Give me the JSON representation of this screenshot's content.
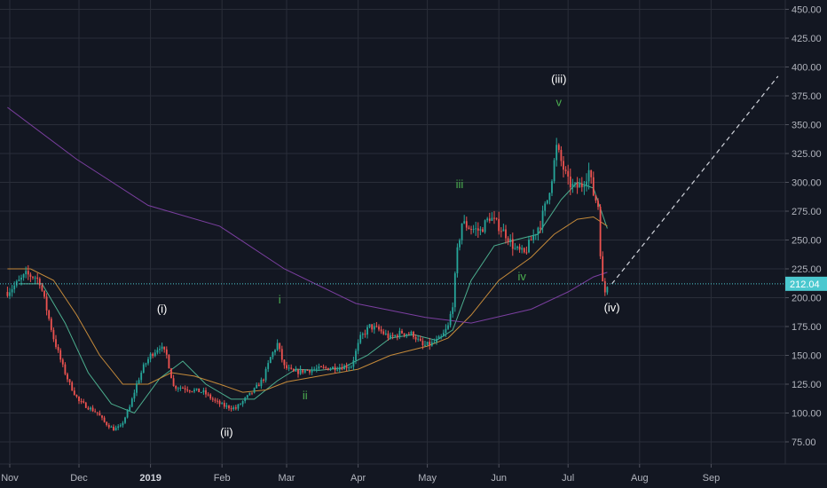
{
  "chart_data": {
    "type": "candlestick",
    "title": "",
    "xlabel": "",
    "ylabel": "",
    "ylim": [
      60,
      460
    ],
    "y_ticks": [
      75,
      100,
      125,
      150,
      175,
      200,
      225,
      250,
      275,
      300,
      325,
      350,
      375,
      400,
      425,
      450
    ],
    "y_tick_labels": [
      "75.00",
      "100.00",
      "125.00",
      "150.00",
      "175.00",
      "200.00",
      "225.00",
      "250.00",
      "275.00",
      "300.00",
      "325.00",
      "350.00",
      "375.00",
      "400.00",
      "425.00",
      "450.00"
    ],
    "x_tick_labels": [
      "Nov",
      "Dec",
      "2019",
      "Feb",
      "Mar",
      "Apr",
      "May",
      "Jun",
      "Jul",
      "Aug",
      "Sep"
    ],
    "x_tick_dates": [
      "2018-11-01",
      "2018-12-01",
      "2019-01-01",
      "2019-02-01",
      "2019-03-01",
      "2019-04-01",
      "2019-05-01",
      "2019-06-01",
      "2019-07-01",
      "2019-08-01",
      "2019-09-01"
    ],
    "grid": true,
    "last_price": 212.04,
    "last_price_label": "212.04",
    "price_path": [
      [
        "2018-10-31",
        205
      ],
      [
        "2018-11-04",
        212
      ],
      [
        "2018-11-08",
        220
      ],
      [
        "2018-11-12",
        218
      ],
      [
        "2018-11-14",
        214
      ],
      [
        "2018-11-17",
        190
      ],
      [
        "2018-11-20",
        165
      ],
      [
        "2018-11-24",
        140
      ],
      [
        "2018-11-27",
        125
      ],
      [
        "2018-12-01",
        110
      ],
      [
        "2018-12-05",
        105
      ],
      [
        "2018-12-09",
        100
      ],
      [
        "2018-12-12",
        92
      ],
      [
        "2018-12-16",
        86
      ],
      [
        "2018-12-19",
        88
      ],
      [
        "2018-12-23",
        105
      ],
      [
        "2018-12-26",
        125
      ],
      [
        "2018-12-29",
        140
      ],
      [
        "2019-01-01",
        150
      ],
      [
        "2019-01-05",
        158
      ],
      [
        "2019-01-08",
        150
      ],
      [
        "2019-01-11",
        123
      ],
      [
        "2019-01-15",
        122
      ],
      [
        "2019-01-19",
        120
      ],
      [
        "2019-01-24",
        118
      ],
      [
        "2019-01-29",
        110
      ],
      [
        "2019-02-02",
        106
      ],
      [
        "2019-02-07",
        104
      ],
      [
        "2019-02-11",
        112
      ],
      [
        "2019-02-15",
        120
      ],
      [
        "2019-02-19",
        130
      ],
      [
        "2019-02-22",
        148
      ],
      [
        "2019-02-25",
        160
      ],
      [
        "2019-02-28",
        140
      ],
      [
        "2019-03-04",
        135
      ],
      [
        "2019-03-09",
        137
      ],
      [
        "2019-03-14",
        138
      ],
      [
        "2019-03-19",
        139
      ],
      [
        "2019-03-24",
        140
      ],
      [
        "2019-03-29",
        141
      ],
      [
        "2019-04-02",
        165
      ],
      [
        "2019-04-06",
        175
      ],
      [
        "2019-04-10",
        172
      ],
      [
        "2019-04-15",
        165
      ],
      [
        "2019-04-20",
        170
      ],
      [
        "2019-04-25",
        168
      ],
      [
        "2019-04-29",
        158
      ],
      [
        "2019-05-03",
        160
      ],
      [
        "2019-05-07",
        165
      ],
      [
        "2019-05-10",
        175
      ],
      [
        "2019-05-12",
        195
      ],
      [
        "2019-05-14",
        240
      ],
      [
        "2019-05-16",
        265
      ],
      [
        "2019-05-20",
        260
      ],
      [
        "2019-05-24",
        258
      ],
      [
        "2019-05-28",
        270
      ],
      [
        "2019-06-01",
        262
      ],
      [
        "2019-06-04",
        255
      ],
      [
        "2019-06-08",
        242
      ],
      [
        "2019-06-12",
        238
      ],
      [
        "2019-06-15",
        250
      ],
      [
        "2019-06-19",
        265
      ],
      [
        "2019-06-22",
        285
      ],
      [
        "2019-06-24",
        305
      ],
      [
        "2019-06-26",
        330
      ],
      [
        "2019-06-28",
        318
      ],
      [
        "2019-07-01",
        300
      ],
      [
        "2019-07-04",
        295
      ],
      [
        "2019-07-07",
        298
      ],
      [
        "2019-07-10",
        310
      ],
      [
        "2019-07-12",
        290
      ],
      [
        "2019-07-14",
        280
      ],
      [
        "2019-07-15",
        240
      ],
      [
        "2019-07-16",
        212
      ],
      [
        "2019-07-17",
        205
      ],
      [
        "2019-07-18",
        212
      ]
    ],
    "moving_averages": [
      {
        "name": "",
        "color": "#4caf8f",
        "values": [
          [
            "2018-11-05",
            212
          ],
          [
            "2018-11-15",
            212
          ],
          [
            "2018-11-25",
            178
          ],
          [
            "2018-12-05",
            135
          ],
          [
            "2018-12-15",
            108
          ],
          [
            "2018-12-25",
            100
          ],
          [
            "2019-01-05",
            130
          ],
          [
            "2019-01-15",
            145
          ],
          [
            "2019-01-25",
            125
          ],
          [
            "2019-02-05",
            112
          ],
          [
            "2019-02-15",
            112
          ],
          [
            "2019-02-25",
            128
          ],
          [
            "2019-03-05",
            138
          ],
          [
            "2019-03-15",
            137
          ],
          [
            "2019-03-25",
            139
          ],
          [
            "2019-04-05",
            150
          ],
          [
            "2019-04-15",
            165
          ],
          [
            "2019-04-25",
            168
          ],
          [
            "2019-05-05",
            163
          ],
          [
            "2019-05-12",
            172
          ],
          [
            "2019-05-20",
            215
          ],
          [
            "2019-05-30",
            245
          ],
          [
            "2019-06-08",
            250
          ],
          [
            "2019-06-18",
            255
          ],
          [
            "2019-06-28",
            285
          ],
          [
            "2019-07-05",
            300
          ],
          [
            "2019-07-12",
            295
          ],
          [
            "2019-07-18",
            260
          ]
        ]
      },
      {
        "name": "",
        "color": "#c58a3a",
        "values": [
          [
            "2018-10-31",
            225
          ],
          [
            "2018-11-10",
            225
          ],
          [
            "2018-11-20",
            215
          ],
          [
            "2018-11-30",
            185
          ],
          [
            "2018-12-10",
            150
          ],
          [
            "2018-12-20",
            125
          ],
          [
            "2018-12-31",
            125
          ],
          [
            "2019-01-10",
            135
          ],
          [
            "2019-01-20",
            132
          ],
          [
            "2019-01-31",
            125
          ],
          [
            "2019-02-10",
            118
          ],
          [
            "2019-02-20",
            120
          ],
          [
            "2019-03-01",
            127
          ],
          [
            "2019-03-15",
            132
          ],
          [
            "2019-04-01",
            138
          ],
          [
            "2019-04-15",
            150
          ],
          [
            "2019-05-01",
            158
          ],
          [
            "2019-05-10",
            165
          ],
          [
            "2019-05-20",
            185
          ],
          [
            "2019-06-01",
            215
          ],
          [
            "2019-06-15",
            235
          ],
          [
            "2019-06-25",
            255
          ],
          [
            "2019-07-05",
            268
          ],
          [
            "2019-07-12",
            270
          ],
          [
            "2019-07-18",
            262
          ]
        ]
      },
      {
        "name": "",
        "color": "#7b3fa0",
        "values": [
          [
            "2018-10-31",
            365
          ],
          [
            "2018-11-30",
            320
          ],
          [
            "2018-12-31",
            280
          ],
          [
            "2019-01-31",
            262
          ],
          [
            "2019-02-28",
            225
          ],
          [
            "2019-03-31",
            195
          ],
          [
            "2019-04-30",
            183
          ],
          [
            "2019-05-20",
            178
          ],
          [
            "2019-06-15",
            190
          ],
          [
            "2019-07-01",
            205
          ],
          [
            "2019-07-12",
            218
          ],
          [
            "2019-07-18",
            222
          ]
        ]
      }
    ],
    "projection": {
      "from": [
        "2019-07-20",
        212
      ],
      "to": [
        "2019-09-30",
        392
      ]
    },
    "annotations": [
      {
        "text": "(i)",
        "date": "2019-01-06",
        "price": 187,
        "color": "white"
      },
      {
        "text": "(ii)",
        "date": "2019-02-03",
        "price": 80,
        "color": "white"
      },
      {
        "text": "i",
        "date": "2019-02-26",
        "price": 195,
        "color": "green"
      },
      {
        "text": "ii",
        "date": "2019-03-09",
        "price": 112,
        "color": "green"
      },
      {
        "text": "iii",
        "date": "2019-05-15",
        "price": 295,
        "color": "green"
      },
      {
        "text": "(iii)",
        "date": "2019-06-27",
        "price": 386,
        "color": "white"
      },
      {
        "text": "v",
        "date": "2019-06-27",
        "price": 366,
        "color": "green"
      },
      {
        "text": "iv",
        "date": "2019-06-11",
        "price": 215,
        "color": "green"
      },
      {
        "text": "(iv)",
        "date": "2019-07-20",
        "price": 188,
        "color": "white"
      }
    ],
    "colors": {
      "background": "#131722",
      "grid": "#2a2e39",
      "up": "#26a69a",
      "down": "#ef5350",
      "axis_text": "#b2b5be",
      "price_line": "#4bc8cf",
      "price_label_bg": "#4bc8cf",
      "projection": "#d1d4dc",
      "wave_white": "#ffffff",
      "wave_green": "#4caf50"
    }
  }
}
